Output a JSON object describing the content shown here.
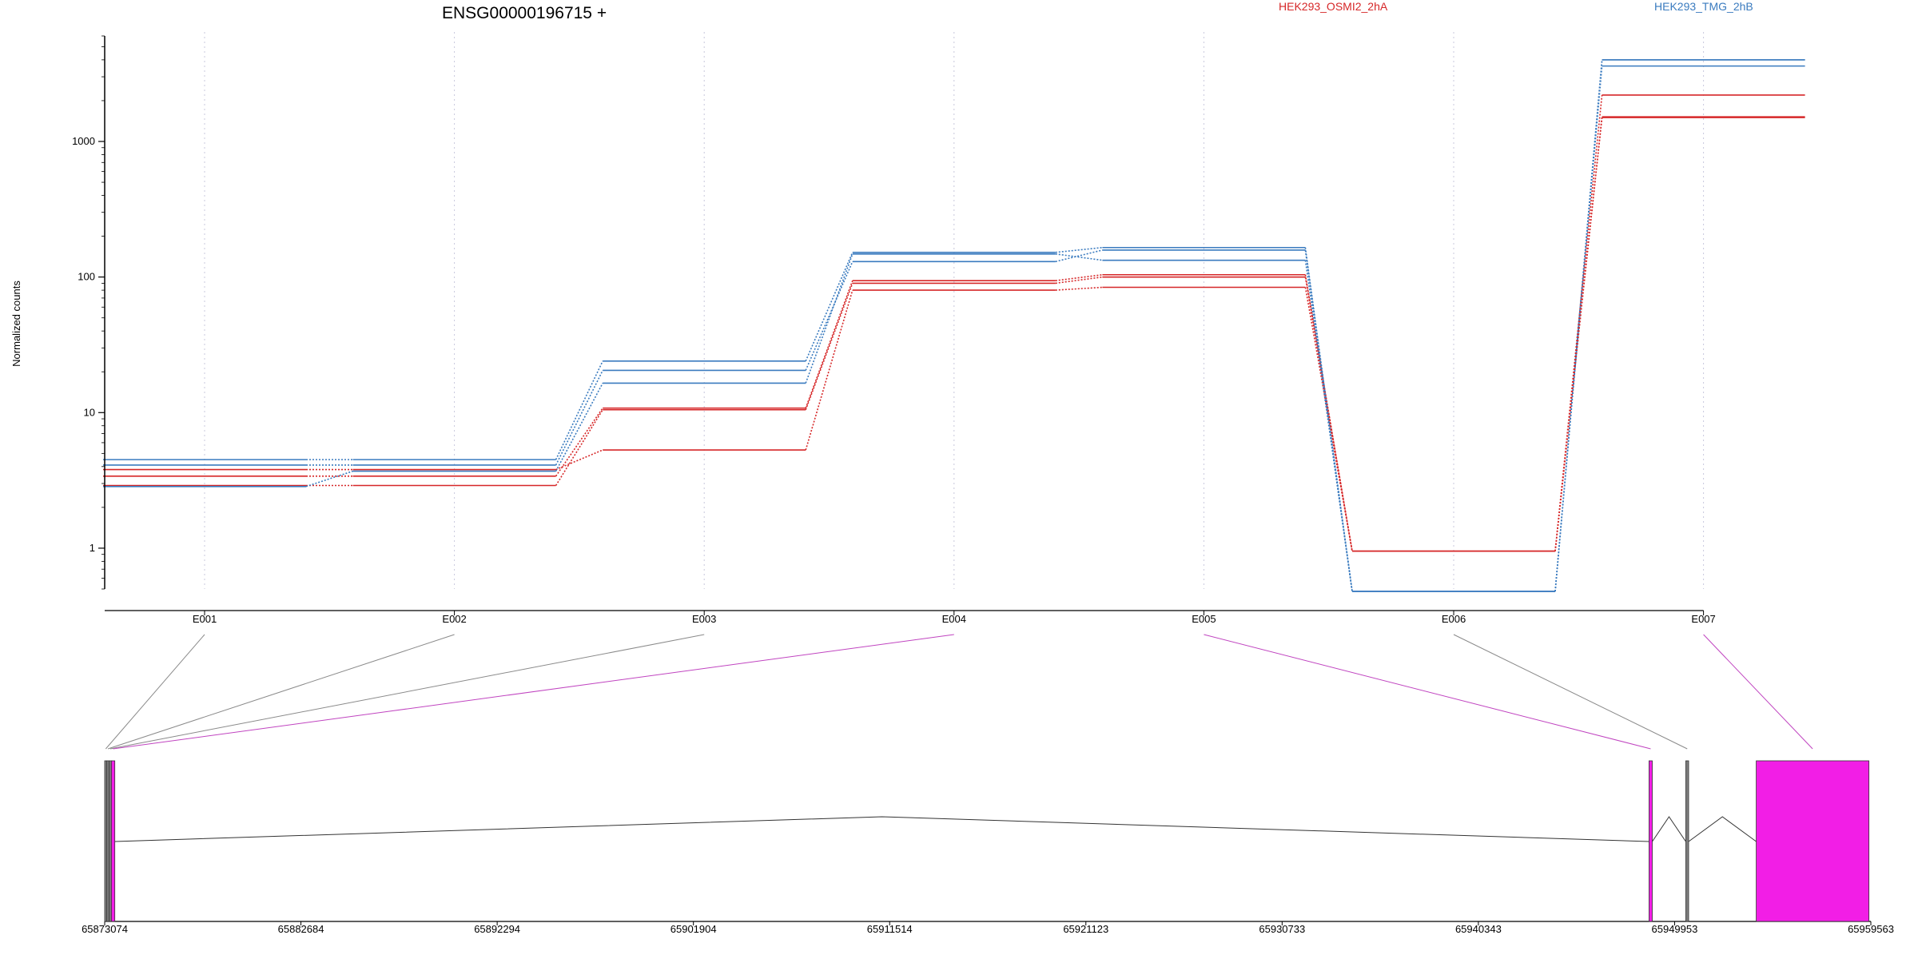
{
  "chart_data": {
    "type": "line",
    "title": "ENSG00000196715 +",
    "ylabel": "Normalized counts",
    "yscale": "log",
    "ylim": [
      0.5,
      6000
    ],
    "yticks": [
      {
        "value": 1,
        "label": "1"
      },
      {
        "value": 10,
        "label": "10"
      },
      {
        "value": 100,
        "label": "100"
      },
      {
        "value": 1000,
        "label": "1000"
      }
    ],
    "grid": "vertical",
    "categories": [
      "E001",
      "E002",
      "E003",
      "E004",
      "E005",
      "E006",
      "E007"
    ],
    "legend": [
      {
        "label": "HEK293_OSMI2_2hA",
        "color": "#d62728"
      },
      {
        "label": "HEK293_TMG_2hB",
        "color": "#3a7bbf"
      }
    ],
    "series": [
      {
        "group": "HEK293_OSMI2_2hA",
        "color": "#d62728",
        "values": [
          2.9,
          2.9,
          10.5,
          90,
          100,
          0.95,
          1500
        ]
      },
      {
        "group": "HEK293_OSMI2_2hA",
        "color": "#d62728",
        "values": [
          3.4,
          3.4,
          10.8,
          94,
          104,
          0.95,
          1520
        ]
      },
      {
        "group": "HEK293_OSMI2_2hA",
        "color": "#d62728",
        "values": [
          3.8,
          3.8,
          5.3,
          80,
          84,
          0.95,
          2200
        ]
      },
      {
        "group": "HEK293_TMG_2hB",
        "color": "#3a7bbf",
        "values": [
          4.5,
          4.5,
          24,
          152,
          165,
          0.48,
          4000
        ]
      },
      {
        "group": "HEK293_TMG_2hB",
        "color": "#3a7bbf",
        "values": [
          4.1,
          4.1,
          20.5,
          130,
          158,
          0.48,
          3600
        ]
      },
      {
        "group": "HEK293_TMG_2hB",
        "color": "#3a7bbf",
        "values": [
          2.85,
          3.7,
          16.5,
          148,
          133,
          0.48,
          4000
        ]
      }
    ],
    "gene_model": {
      "xlim": [
        65873074,
        65959563
      ],
      "xticks": [
        "65873074",
        "65882684",
        "65892294",
        "65901904",
        "65911514",
        "65921123",
        "65930733",
        "65940343",
        "65949953",
        "65959563"
      ],
      "exons": [
        {
          "id": "E001",
          "start": 65873074,
          "end": 65873180,
          "color": "#808080"
        },
        {
          "id": "E002",
          "start": 65873180,
          "end": 65873290,
          "color": "#808080"
        },
        {
          "id": "E003",
          "start": 65873290,
          "end": 65873400,
          "color": "#808080"
        },
        {
          "id": "E004",
          "start": 65873400,
          "end": 65873570,
          "color": "#f21ee6"
        },
        {
          "id": "E005",
          "start": 65948700,
          "end": 65948860,
          "color": "#f21ee6"
        },
        {
          "id": "E006",
          "start": 65950500,
          "end": 65950640,
          "color": "#808080"
        },
        {
          "id": "E007",
          "start": 65953950,
          "end": 65959470,
          "color": "#f21ee6"
        }
      ]
    }
  }
}
